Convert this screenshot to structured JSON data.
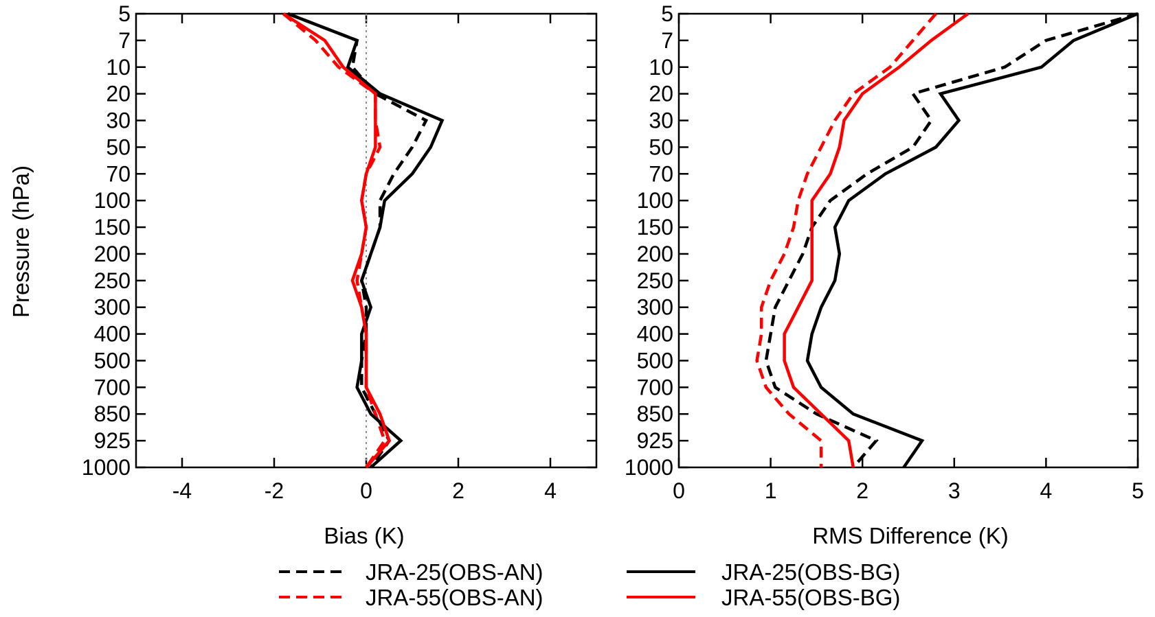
{
  "chart_data": [
    {
      "type": "line",
      "xlabel": "Bias (K)",
      "ylabel": "Pressure (hPa)",
      "xlim": [
        -5,
        5
      ],
      "xticks": [
        -4,
        -2,
        0,
        2,
        4
      ],
      "y_scale": "categorical-pressure",
      "levels": [
        5,
        7,
        10,
        20,
        30,
        50,
        70,
        100,
        150,
        200,
        250,
        300,
        400,
        500,
        700,
        850,
        925,
        1000
      ],
      "reference_line": {
        "x": 0,
        "style": "dotted",
        "color": "#888888"
      },
      "series": [
        {
          "name": "JRA-25(OBS-AN)",
          "color": "#000000",
          "dash": true,
          "values": [
            -1.7,
            -0.2,
            -0.3,
            0.2,
            1.3,
            1.0,
            0.6,
            0.3,
            0.3,
            0.1,
            -0.1,
            0.0,
            0.0,
            -0.1,
            -0.1,
            0.2,
            0.5,
            0.1
          ]
        },
        {
          "name": "JRA-55(OBS-AN)",
          "color": "#ff0000",
          "dash": true,
          "values": [
            -1.8,
            -1.1,
            -0.6,
            0.2,
            0.2,
            0.3,
            0.0,
            -0.1,
            0.0,
            -0.1,
            -0.2,
            -0.1,
            0.0,
            0.0,
            0.0,
            0.2,
            0.4,
            0.0
          ]
        },
        {
          "name": "JRA-25(OBS-BG)",
          "color": "#000000",
          "dash": false,
          "values": [
            -1.7,
            -0.2,
            -0.4,
            0.3,
            1.65,
            1.4,
            1.0,
            0.4,
            0.3,
            0.1,
            -0.1,
            0.1,
            -0.1,
            -0.1,
            -0.2,
            0.1,
            0.75,
            0.1
          ]
        },
        {
          "name": "JRA-55(OBS-BG)",
          "color": "#ff0000",
          "dash": false,
          "values": [
            -1.8,
            -0.9,
            -0.5,
            0.2,
            0.2,
            0.2,
            0.0,
            -0.1,
            0.0,
            -0.1,
            -0.3,
            -0.1,
            0.0,
            0.0,
            0.0,
            0.3,
            0.5,
            0.0
          ]
        }
      ]
    },
    {
      "type": "line",
      "xlabel": "RMS Difference (K)",
      "ylabel": "",
      "xlim": [
        0,
        5
      ],
      "xticks": [
        0,
        1,
        2,
        3,
        4,
        5
      ],
      "y_scale": "categorical-pressure",
      "levels": [
        5,
        7,
        10,
        20,
        30,
        50,
        70,
        100,
        150,
        200,
        250,
        300,
        400,
        500,
        700,
        850,
        925,
        1000
      ],
      "series": [
        {
          "name": "JRA-25(OBS-AN)",
          "color": "#000000",
          "dash": true,
          "values": [
            5.0,
            4.0,
            3.55,
            2.55,
            2.75,
            2.55,
            2.05,
            1.65,
            1.45,
            1.35,
            1.2,
            1.05,
            1.0,
            0.95,
            1.05,
            1.5,
            2.15,
            1.9
          ]
        },
        {
          "name": "JRA-55(OBS-AN)",
          "color": "#ff0000",
          "dash": true,
          "values": [
            2.8,
            2.55,
            2.3,
            1.9,
            1.7,
            1.55,
            1.4,
            1.3,
            1.25,
            1.15,
            1.0,
            0.9,
            0.9,
            0.85,
            0.95,
            1.2,
            1.55,
            1.55
          ]
        },
        {
          "name": "JRA-25(OBS-BG)",
          "color": "#000000",
          "dash": false,
          "values": [
            5.0,
            4.3,
            3.95,
            2.85,
            3.05,
            2.8,
            2.25,
            1.85,
            1.7,
            1.75,
            1.7,
            1.55,
            1.45,
            1.4,
            1.55,
            1.9,
            2.65,
            2.45
          ]
        },
        {
          "name": "JRA-55(OBS-BG)",
          "color": "#ff0000",
          "dash": false,
          "values": [
            3.15,
            2.75,
            2.4,
            2.0,
            1.8,
            1.75,
            1.65,
            1.45,
            1.45,
            1.45,
            1.45,
            1.3,
            1.15,
            1.15,
            1.25,
            1.55,
            1.85,
            1.9
          ]
        }
      ]
    }
  ],
  "legend": {
    "placement": "bottom-center",
    "entries": [
      {
        "label": "JRA-25(OBS-AN)",
        "color": "#000000",
        "dash": true
      },
      {
        "label": "JRA-25(OBS-BG)",
        "color": "#000000",
        "dash": false
      },
      {
        "label": "JRA-55(OBS-AN)",
        "color": "#ff0000",
        "dash": true
      },
      {
        "label": "JRA-55(OBS-BG)",
        "color": "#ff0000",
        "dash": false
      }
    ]
  }
}
